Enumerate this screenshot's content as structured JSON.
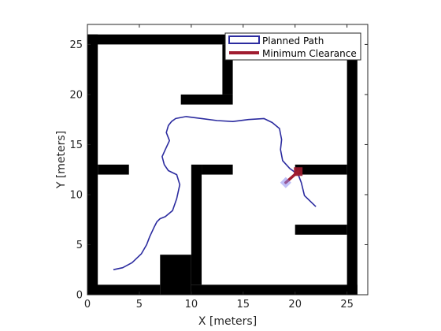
{
  "chart_data": {
    "type": "line",
    "title": "",
    "xlabel": "X [meters]",
    "ylabel": "Y [meters]",
    "xlim": [
      0,
      27
    ],
    "ylim": [
      0,
      27
    ],
    "xticks": [
      0,
      5,
      10,
      15,
      20,
      25
    ],
    "yticks": [
      0,
      5,
      10,
      15,
      20,
      25
    ],
    "grid": false,
    "legend_location": "top-right",
    "colors": {
      "obstacle": "#000000",
      "free": "#ffffff",
      "path": "#2b2b9f",
      "clearance": "#a01c30",
      "start_marker": "#8c8cf0"
    },
    "occupancy_map": {
      "description_units": "meters",
      "obstacles": [
        {
          "x": [
            0,
            1
          ],
          "y": [
            0,
            26
          ]
        },
        {
          "x": [
            25,
            26
          ],
          "y": [
            0,
            26
          ]
        },
        {
          "x": [
            0,
            26
          ],
          "y": [
            25,
            26
          ]
        },
        {
          "x": [
            0,
            7
          ],
          "y": [
            0,
            1
          ]
        },
        {
          "x": [
            7,
            10
          ],
          "y": [
            0,
            4
          ]
        },
        {
          "x": [
            10,
            26
          ],
          "y": [
            0,
            1
          ]
        },
        {
          "x": [
            10,
            11
          ],
          "y": [
            1,
            13
          ]
        },
        {
          "x": [
            11,
            14
          ],
          "y": [
            12,
            13
          ]
        },
        {
          "x": [
            1,
            4
          ],
          "y": [
            12,
            13
          ]
        },
        {
          "x": [
            20,
            25
          ],
          "y": [
            12,
            13
          ]
        },
        {
          "x": [
            20,
            25
          ],
          "y": [
            6,
            7
          ]
        },
        {
          "x": [
            9,
            14
          ],
          "y": [
            19,
            20
          ]
        },
        {
          "x": [
            13,
            14
          ],
          "y": [
            20,
            25
          ]
        }
      ]
    },
    "series": [
      {
        "name": "Planned Path",
        "style": "line",
        "x": [
          2.5,
          3.4,
          4.3,
          5.2,
          5.7,
          6.0,
          6.4,
          6.7,
          7.0,
          7.5,
          8.2,
          8.6,
          8.9,
          8.6,
          7.8,
          7.4,
          7.2,
          7.5,
          7.9,
          7.6,
          7.8,
          8.1,
          8.5,
          9.5,
          11.0,
          12.5,
          14.0,
          15.5,
          17.0,
          17.8,
          18.5,
          18.7,
          18.6,
          18.8,
          19.5,
          20.3,
          20.6,
          20.9,
          22.0
        ],
        "y": [
          2.5,
          2.7,
          3.2,
          4.1,
          5.0,
          5.8,
          6.7,
          7.3,
          7.6,
          7.8,
          8.4,
          9.6,
          11.0,
          12.0,
          12.4,
          13.0,
          13.8,
          14.5,
          15.4,
          16.2,
          16.9,
          17.3,
          17.6,
          17.8,
          17.6,
          17.4,
          17.3,
          17.5,
          17.6,
          17.2,
          16.6,
          15.5,
          14.5,
          13.4,
          12.6,
          12.0,
          11.2,
          9.9,
          8.8
        ]
      },
      {
        "name": "Minimum Clearance",
        "style": "thick-line",
        "x": [
          19.1,
          20.3
        ],
        "y": [
          11.2,
          12.3
        ]
      }
    ],
    "markers": [
      {
        "role": "clearance-end",
        "x": 20.3,
        "y": 12.3
      },
      {
        "role": "clearance-start",
        "x": 19.1,
        "y": 11.2
      }
    ]
  }
}
